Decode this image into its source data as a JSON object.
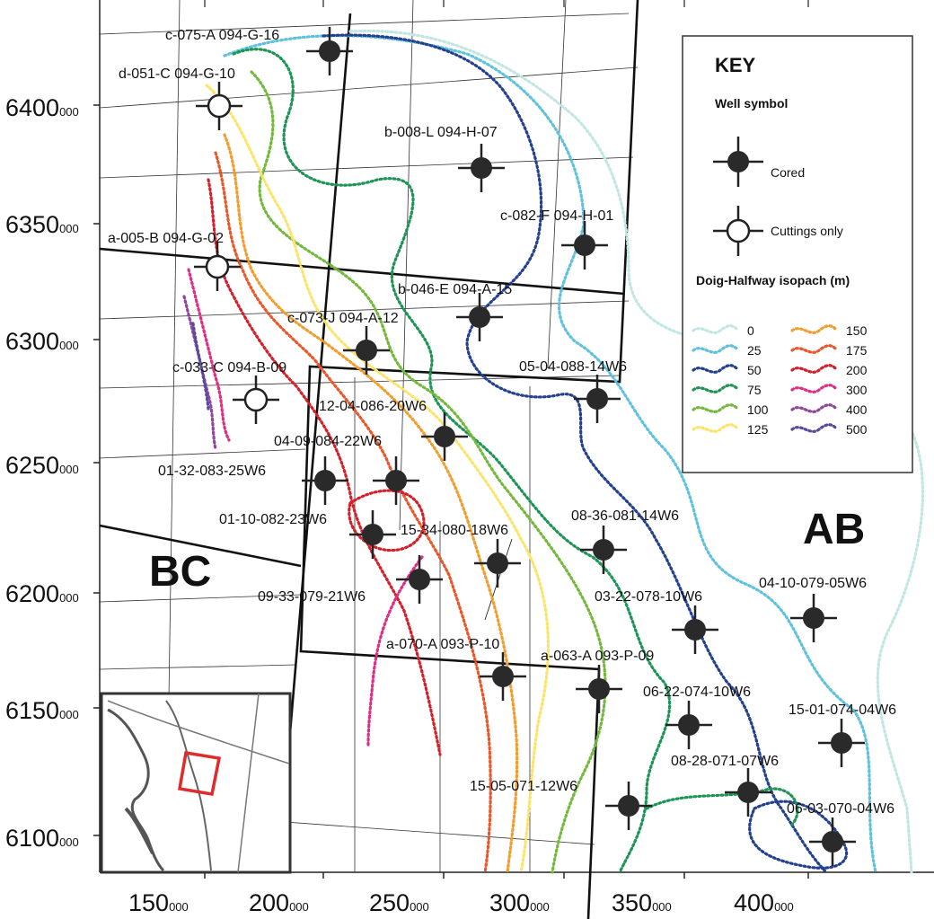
{
  "map": {
    "x_ticks": [
      {
        "value": "150",
        "sub": "000"
      },
      {
        "value": "200",
        "sub": "000"
      },
      {
        "value": "250",
        "sub": "000"
      },
      {
        "value": "300",
        "sub": "000"
      },
      {
        "value": "350",
        "sub": "000"
      },
      {
        "value": "400",
        "sub": "000"
      }
    ],
    "y_ticks": [
      {
        "value": "6400",
        "sub": "000"
      },
      {
        "value": "6350",
        "sub": "000"
      },
      {
        "value": "6300",
        "sub": "000"
      },
      {
        "value": "6250",
        "sub": "000"
      },
      {
        "value": "6200",
        "sub": "000"
      },
      {
        "value": "6150",
        "sub": "000"
      },
      {
        "value": "6100",
        "sub": "000"
      }
    ],
    "regions": {
      "bc": "BC",
      "ab": "AB"
    },
    "wells": [
      {
        "label": "c-075-A 094-G-16",
        "type": "cored"
      },
      {
        "label": "d-051-C 094-G-10",
        "type": "cuttings"
      },
      {
        "label": "b-008-L 094-H-07",
        "type": "cored"
      },
      {
        "label": "c-082-F 094-H-01",
        "type": "cored"
      },
      {
        "label": "a-005-B 094-G-02",
        "type": "cuttings"
      },
      {
        "label": "b-046-E 094-A-15",
        "type": "cored"
      },
      {
        "label": "c-073-J 094-A-12",
        "type": "cored"
      },
      {
        "label": "c-033-C 094-B-09",
        "type": "cuttings"
      },
      {
        "label": "05-04-088-14W6",
        "type": "cored"
      },
      {
        "label": "12-04-086-20W6",
        "type": "cored"
      },
      {
        "label": "04-09-084-22W6",
        "type": "cored"
      },
      {
        "label": "01-32-083-25W6",
        "type": "cored"
      },
      {
        "label": "01-10-082-23W6",
        "type": "cored"
      },
      {
        "label": "15-34-080-18W6",
        "type": "cored"
      },
      {
        "label": "08-36-081-14W6",
        "type": "cored"
      },
      {
        "label": "09-33-079-21W6",
        "type": "cored"
      },
      {
        "label": "03-22-078-10W6",
        "type": "cored"
      },
      {
        "label": "04-10-079-05W6",
        "type": "cored"
      },
      {
        "label": "a-070-A 093-P-10",
        "type": "cored"
      },
      {
        "label": "a-063-A 093-P-09",
        "type": "cored"
      },
      {
        "label": "06-22-074-10W6",
        "type": "cored"
      },
      {
        "label": "15-01-074-04W6",
        "type": "cored"
      },
      {
        "label": "08-28-071-07W6",
        "type": "cored"
      },
      {
        "label": "15-05-071-12W6",
        "type": "cored"
      },
      {
        "label": "06-03-070-04W6",
        "type": "cored"
      }
    ]
  },
  "key": {
    "title": "KEY",
    "well_symbol_heading": "Well symbol",
    "cored_label": "Cored",
    "cuttings_label": "Cuttings only",
    "isopach_heading": "Doig-Halfway isopach (m)",
    "isopach": [
      {
        "value": "0",
        "color": "#c2e6e2"
      },
      {
        "value": "25",
        "color": "#5fc1dc"
      },
      {
        "value": "50",
        "color": "#24418f"
      },
      {
        "value": "75",
        "color": "#1f9457"
      },
      {
        "value": "100",
        "color": "#74b83c"
      },
      {
        "value": "125",
        "color": "#fce46b"
      },
      {
        "value": "150",
        "color": "#f29d2e"
      },
      {
        "value": "175",
        "color": "#e9572a"
      },
      {
        "value": "200",
        "color": "#d4202a"
      },
      {
        "value": "300",
        "color": "#de2f86"
      },
      {
        "value": "400",
        "color": "#8f479c"
      },
      {
        "value": "500",
        "color": "#5a4a9c"
      }
    ]
  },
  "colors": {
    "cored_fill": "#2a2a2a",
    "inset_box": "#e02b2b"
  }
}
